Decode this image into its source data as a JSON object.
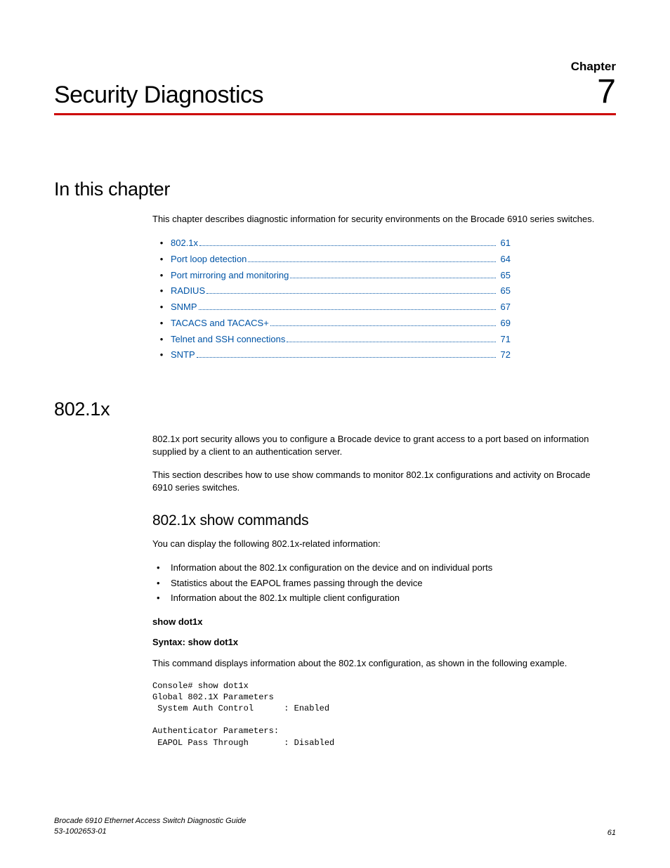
{
  "colors": {
    "rule": "#cc0000",
    "link": "#0054a6",
    "text": "#000000",
    "bg": "#ffffff"
  },
  "typography": {
    "body_family": "Arial, Helvetica, sans-serif",
    "mono_family": "Courier New, monospace",
    "chapter_title_size": 34,
    "chapter_number_size": 48,
    "h1_size": 27,
    "h2_size": 21,
    "body_size": 13,
    "code_size": 12,
    "footer_size": 11
  },
  "header": {
    "chapter_label": "Chapter",
    "chapter_title": "Security Diagnostics",
    "chapter_number": "7"
  },
  "section_in_chapter": {
    "heading": "In this chapter",
    "intro": "This chapter describes diagnostic information for security environments on the Brocade 6910 series switches.",
    "toc": [
      {
        "label": "802.1x",
        "page": "61"
      },
      {
        "label": "Port loop detection",
        "page": "64"
      },
      {
        "label": "Port mirroring and monitoring",
        "page": "65"
      },
      {
        "label": "RADIUS",
        "page": "65"
      },
      {
        "label": "SNMP",
        "page": "67"
      },
      {
        "label": "TACACS and TACACS+",
        "page": "69"
      },
      {
        "label": "Telnet and SSH connections",
        "page": "71"
      },
      {
        "label": "SNTP",
        "page": "72"
      }
    ]
  },
  "section_8021x": {
    "heading": "802.1x",
    "para1": "802.1x port security allows you to configure a Brocade device to grant access to a port based on information supplied by a client to an authentication server.",
    "para2": "This section describes how to use show commands to monitor 802.1x configurations and activity on Brocade 6910 series switches.",
    "sub_heading": "802.1x show commands",
    "sub_intro": "You can display the following 802.1x-related information:",
    "bullets": [
      "Information about the 802.1x configuration on the device and on individual ports",
      "Statistics about the EAPOL frames passing through the device",
      "Information about the 802.1x multiple client configuration"
    ],
    "cmd_name": "show dot1x",
    "syntax_label": "Syntax:  show dot1x",
    "cmd_desc": "This command displays information about the 802.1x configuration, as shown in the following example.",
    "code": "Console# show dot1x\nGlobal 802.1X Parameters\n System Auth Control      : Enabled\n\nAuthenticator Parameters:\n EAPOL Pass Through       : Disabled"
  },
  "footer": {
    "doc_title": "Brocade 6910 Ethernet Access Switch Diagnostic Guide",
    "doc_number": "53-1002653-01",
    "page_number": "61"
  }
}
